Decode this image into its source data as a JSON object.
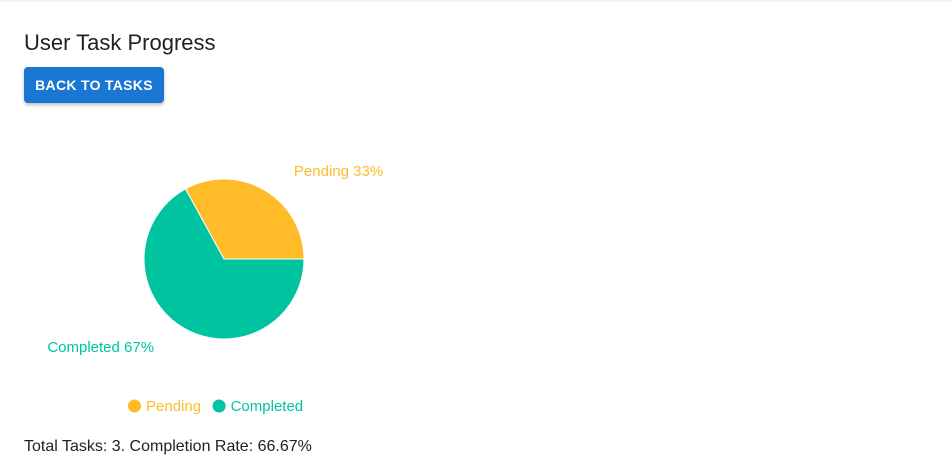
{
  "header": {
    "title": "User Task Progress",
    "back_label": "BACK TO TASKS"
  },
  "chart_data": {
    "type": "pie",
    "series": [
      {
        "name": "Pending",
        "value": 33,
        "label": "Pending 33%",
        "color": "#ffbb28"
      },
      {
        "name": "Completed",
        "value": 67,
        "label": "Completed 67%",
        "color": "#00c49f"
      }
    ],
    "legend": [
      "Pending",
      "Completed"
    ],
    "legend_position": "bottom",
    "title": ""
  },
  "footer": {
    "summary": "Total Tasks: 3. Completion Rate: 66.67%"
  },
  "colors": {
    "accent": "#1976d2"
  }
}
